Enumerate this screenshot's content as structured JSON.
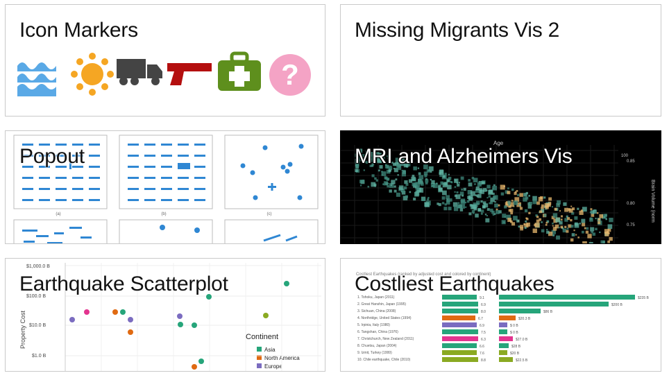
{
  "cards": [
    {
      "title": "Icon Markers"
    },
    {
      "title": "Missing Migrants Vis 2"
    },
    {
      "title": "Popout"
    },
    {
      "title": "MRI and Alzheimers Vis"
    },
    {
      "title": "Earthquake Scatterplot"
    },
    {
      "title": "Costliest Earthquakes"
    }
  ],
  "icons": [
    "flood-icon",
    "sun-icon",
    "truck-icon",
    "gun-icon",
    "medical-kit-icon",
    "question-icon"
  ],
  "colors": {
    "blue": "#2f87d3",
    "flood": "#5aa9e6",
    "sun": "#f5a623",
    "truck": "#444444",
    "gun": "#b40f0f",
    "medical": "#5e8f1d",
    "question": "#f4a3c5",
    "teal": "#26a57a",
    "orange": "#e06a12",
    "purple": "#7b6cc0",
    "pink": "#e3348f",
    "olive": "#8aaa22"
  },
  "popout": {
    "labels": [
      "(a)",
      "(b)",
      "(c)"
    ]
  },
  "mri": {
    "top_label": "Age",
    "right_label": "Brain Volume (norm",
    "right_ticks": [
      "0.85",
      "0.80",
      "0.75"
    ],
    "side_number": "100"
  },
  "scatter": {
    "ylabel": "Property Cost",
    "yticks": [
      "$1,000.0 B",
      "$100.0 B",
      "$10.0 B",
      "$1.0 B"
    ],
    "legend_title": "Continent",
    "legend": [
      {
        "name": "Asia",
        "color": "#26a57a"
      },
      {
        "name": "North America",
        "color": "#e06a12"
      },
      {
        "name": "Europe",
        "color": "#7b6cc0"
      }
    ]
  },
  "costliest": {
    "subtitle": "Costliest Earthquakes (ranked by adjusted cost and colored by continent)",
    "rows": [
      {
        "label": "1. Tohoku, Japan (2011)",
        "v1": "9.1",
        "v2": "$235 B"
      },
      {
        "label": "2. Great Hanshin, Japan (1995)",
        "v1": "6.9",
        "v2": "$200 B"
      },
      {
        "label": "3. Sichuan, China (2008)",
        "v1": "8.0",
        "v2": "$86 B"
      },
      {
        "label": "4. Northridge, United States (1994)",
        "v1": "6.7",
        "v2": "$20.3 B"
      },
      {
        "label": "5. Irpinia, Italy (1980)",
        "v1": "6.9",
        "v2": "$ 0 B"
      },
      {
        "label": "6. Tangshan, China (1976)",
        "v1": "7.5",
        "v2": "$ 0 B"
      },
      {
        "label": "7. Christchurch, New Zealand (2011)",
        "v1": "6.3",
        "v2": "$27.0 B"
      },
      {
        "label": "8. Chuetsu, Japan (2004)",
        "v1": "6.6",
        "v2": "$28 B"
      },
      {
        "label": "9. Izmit, Turkey (1999)",
        "v1": "7.6",
        "v2": "$20 B"
      },
      {
        "label": "10. Chile earthquake, Chile (2010)",
        "v1": "8.8",
        "v2": "$22.5 B"
      }
    ]
  }
}
